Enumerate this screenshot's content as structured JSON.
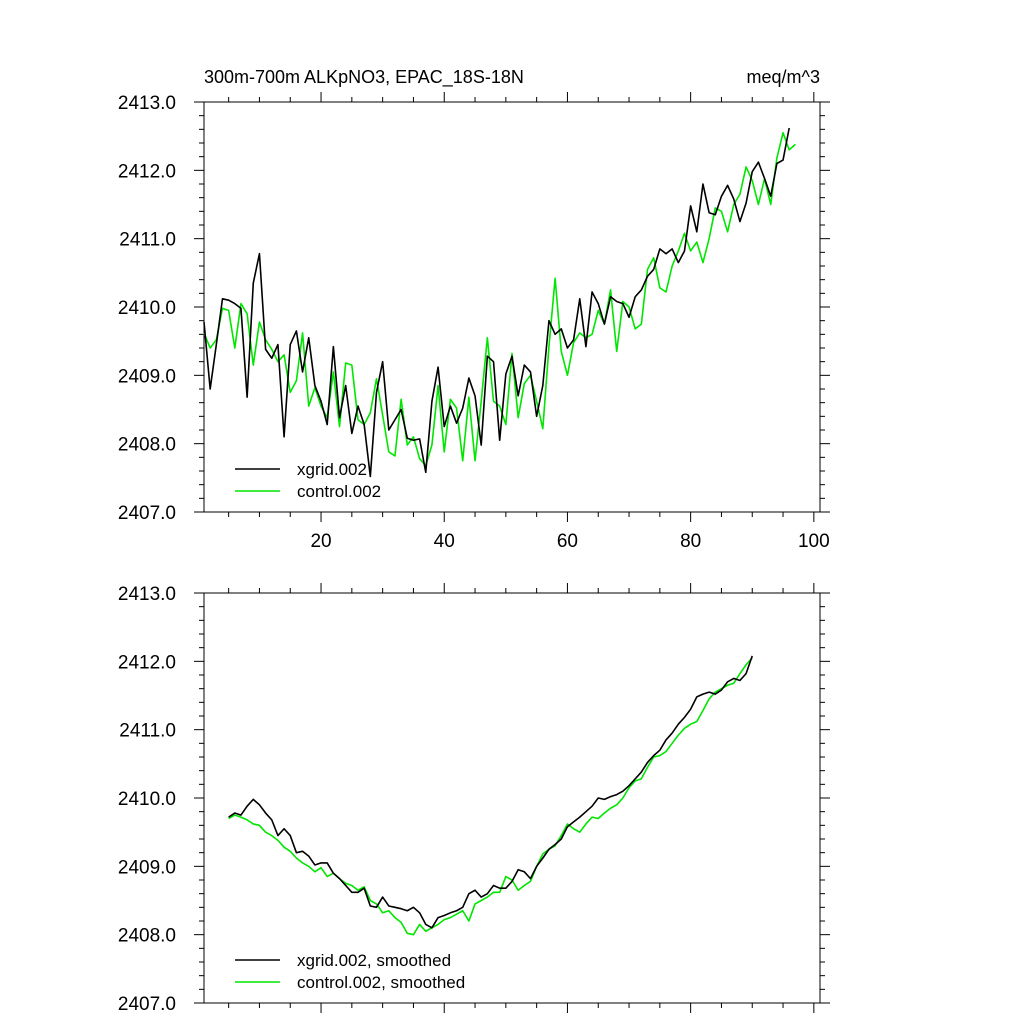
{
  "chart_data": [
    {
      "type": "line",
      "title": "300m-700m ALKpNO3, EPAC_18S-18N",
      "units": "meq/m^3",
      "xlim": [
        1,
        101
      ],
      "ylim": [
        2407.0,
        2413.0
      ],
      "xticks": [
        20,
        40,
        60,
        80,
        100
      ],
      "xtick_labels": [
        "20",
        "40",
        "60",
        "80",
        "100"
      ],
      "yticks": [
        2407.0,
        2408.0,
        2409.0,
        2410.0,
        2411.0,
        2412.0,
        2413.0
      ],
      "ytick_labels": [
        "2407.0",
        "2408.0",
        "2409.0",
        "2410.0",
        "2411.0",
        "2412.0",
        "2413.0"
      ],
      "legend_position": "bottom-left",
      "series": [
        {
          "name": "xgrid.002",
          "color": "#000000",
          "x_start": 1,
          "x_step": 1,
          "values": [
            2409.78,
            2408.8,
            2409.45,
            2410.12,
            2410.1,
            2410.05,
            2409.98,
            2408.68,
            2410.35,
            2410.78,
            2409.38,
            2409.25,
            2409.45,
            2408.1,
            2409.45,
            2409.65,
            2409.05,
            2409.55,
            2408.85,
            2408.62,
            2408.28,
            2409.42,
            2408.38,
            2408.85,
            2408.15,
            2408.55,
            2408.28,
            2407.52,
            2408.75,
            2409.2,
            2408.2,
            2408.35,
            2408.5,
            2408.08,
            2408.05,
            2408.07,
            2407.58,
            2408.62,
            2409.12,
            2408.25,
            2408.55,
            2408.3,
            2408.52,
            2408.96,
            2408.7,
            2407.98,
            2409.28,
            2409.2,
            2408.05,
            2409.02,
            2409.28,
            2408.7,
            2409.15,
            2409.05,
            2408.4,
            2408.85,
            2409.8,
            2409.6,
            2409.68,
            2409.4,
            2409.52,
            2410.12,
            2409.42,
            2410.22,
            2410.05,
            2409.75,
            2410.15,
            2410.08,
            2410.05,
            2409.85,
            2410.15,
            2410.25,
            2410.45,
            2410.55,
            2410.85,
            2410.78,
            2410.85,
            2410.65,
            2410.82,
            2411.48,
            2411.1,
            2411.8,
            2411.38,
            2411.35,
            2411.62,
            2411.78,
            2411.58,
            2411.25,
            2411.52,
            2411.98,
            2412.12,
            2411.88,
            2411.62,
            2412.1,
            2412.15,
            2412.62
          ]
        },
        {
          "name": "control.002",
          "color": "#00e600",
          "x_start": 1,
          "x_step": 1,
          "values": [
            2409.62,
            2409.4,
            2409.52,
            2409.98,
            2409.95,
            2409.4,
            2410.05,
            2409.9,
            2409.15,
            2409.78,
            2409.52,
            2409.38,
            2409.2,
            2409.3,
            2408.75,
            2408.92,
            2409.62,
            2408.55,
            2408.82,
            2408.55,
            2408.38,
            2409.05,
            2408.25,
            2409.18,
            2409.15,
            2408.35,
            2408.28,
            2408.45,
            2408.95,
            2408.42,
            2407.88,
            2407.82,
            2408.65,
            2407.98,
            2408.1,
            2407.78,
            2407.68,
            2407.98,
            2408.85,
            2407.88,
            2408.65,
            2408.52,
            2407.75,
            2408.68,
            2407.75,
            2408.62,
            2409.55,
            2408.62,
            2408.55,
            2408.28,
            2409.32,
            2408.38,
            2408.88,
            2409.0,
            2408.62,
            2408.22,
            2409.42,
            2410.42,
            2409.35,
            2409.0,
            2409.48,
            2409.62,
            2409.55,
            2409.6,
            2409.95,
            2409.75,
            2410.25,
            2409.35,
            2410.08,
            2410.0,
            2409.68,
            2409.75,
            2410.55,
            2410.72,
            2410.28,
            2410.22,
            2410.6,
            2410.82,
            2411.08,
            2410.82,
            2410.95,
            2410.65,
            2411.0,
            2411.45,
            2411.4,
            2411.1,
            2411.5,
            2411.65,
            2412.05,
            2411.85,
            2411.5,
            2411.88,
            2411.5,
            2412.18,
            2412.55,
            2412.3,
            2412.38
          ]
        }
      ]
    },
    {
      "type": "line",
      "xlim": [
        1,
        101
      ],
      "ylim": [
        2407.0,
        2413.0
      ],
      "xticks": [
        20,
        40,
        60,
        80,
        100
      ],
      "xtick_labels": [],
      "yticks": [
        2407.0,
        2408.0,
        2409.0,
        2410.0,
        2411.0,
        2412.0,
        2413.0
      ],
      "ytick_labels": [
        "2407.0",
        "2408.0",
        "2409.0",
        "2410.0",
        "2411.0",
        "2412.0",
        "2413.0"
      ],
      "legend_position": "bottom-left",
      "series": [
        {
          "name": "xgrid.002, smoothed",
          "color": "#000000",
          "x_start": 5,
          "x_step": 1,
          "values": [
            2409.72,
            2409.78,
            2409.75,
            2409.88,
            2409.98,
            2409.9,
            2409.78,
            2409.68,
            2409.45,
            2409.55,
            2409.45,
            2409.2,
            2409.22,
            2409.15,
            2409.02,
            2409.05,
            2409.05,
            2408.9,
            2408.82,
            2408.72,
            2408.62,
            2408.62,
            2408.68,
            2408.42,
            2408.4,
            2408.55,
            2408.42,
            2408.4,
            2408.38,
            2408.35,
            2408.4,
            2408.32,
            2408.15,
            2408.1,
            2408.25,
            2408.28,
            2408.32,
            2408.35,
            2408.4,
            2408.6,
            2408.65,
            2408.55,
            2408.6,
            2408.72,
            2408.68,
            2408.68,
            2408.78,
            2408.95,
            2408.92,
            2408.82,
            2409.0,
            2409.12,
            2409.25,
            2409.32,
            2409.4,
            2409.58,
            2409.65,
            2409.72,
            2409.8,
            2409.88,
            2410.0,
            2409.98,
            2410.02,
            2410.05,
            2410.1,
            2410.18,
            2410.28,
            2410.38,
            2410.52,
            2410.62,
            2410.7,
            2410.85,
            2410.95,
            2411.08,
            2411.18,
            2411.3,
            2411.48,
            2411.52,
            2411.55,
            2411.52,
            2411.58,
            2411.7,
            2411.75,
            2411.72,
            2411.82,
            2412.08
          ]
        },
        {
          "name": "control.002, smoothed",
          "color": "#00e600",
          "x_start": 5,
          "x_step": 1,
          "values": [
            2409.7,
            2409.75,
            2409.72,
            2409.68,
            2409.62,
            2409.6,
            2409.5,
            2409.45,
            2409.38,
            2409.28,
            2409.22,
            2409.12,
            2409.05,
            2409.0,
            2408.92,
            2408.98,
            2408.85,
            2408.9,
            2408.82,
            2408.75,
            2408.72,
            2408.65,
            2408.7,
            2408.5,
            2408.45,
            2408.32,
            2408.35,
            2408.25,
            2408.18,
            2408.02,
            2408.0,
            2408.15,
            2408.05,
            2408.1,
            2408.15,
            2408.22,
            2408.25,
            2408.3,
            2408.35,
            2408.2,
            2408.45,
            2408.5,
            2408.55,
            2408.62,
            2408.62,
            2408.85,
            2408.8,
            2408.65,
            2408.72,
            2408.78,
            2409.0,
            2409.18,
            2409.25,
            2409.3,
            2409.45,
            2409.62,
            2409.55,
            2409.5,
            2409.62,
            2409.72,
            2409.7,
            2409.78,
            2409.85,
            2409.9,
            2410.0,
            2410.15,
            2410.25,
            2410.28,
            2410.45,
            2410.6,
            2410.62,
            2410.68,
            2410.8,
            2410.92,
            2411.02,
            2411.08,
            2411.12,
            2411.28,
            2411.45,
            2411.55,
            2411.6,
            2411.65,
            2411.68,
            2411.82,
            2411.95,
            2412.05
          ]
        }
      ]
    }
  ]
}
